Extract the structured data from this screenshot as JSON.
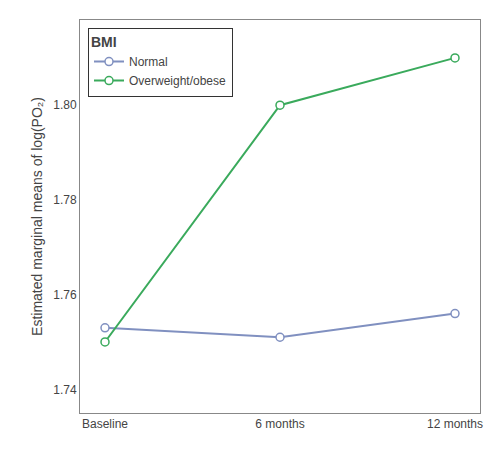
{
  "chart_data": {
    "type": "line",
    "categories": [
      "Baseline",
      "6 months",
      "12 months"
    ],
    "series": [
      {
        "name": "Normal",
        "color": "#8090c0",
        "values": [
          1.753,
          1.751,
          1.756
        ],
        "marker": "circle"
      },
      {
        "name": "Overweight/obese",
        "color": "#3aaa5c",
        "values": [
          1.75,
          1.8,
          1.81
        ],
        "marker": "circle"
      }
    ],
    "legend_title": "BMI",
    "ylabel": "Estimated marginal means of log(PO₂)",
    "ylim": [
      1.735,
      1.818
    ],
    "yticks": [
      1.74,
      1.76,
      1.78,
      {
        "value": 1.8,
        "label": "1.80"
      }
    ],
    "grid": false,
    "legend": "upper left"
  }
}
